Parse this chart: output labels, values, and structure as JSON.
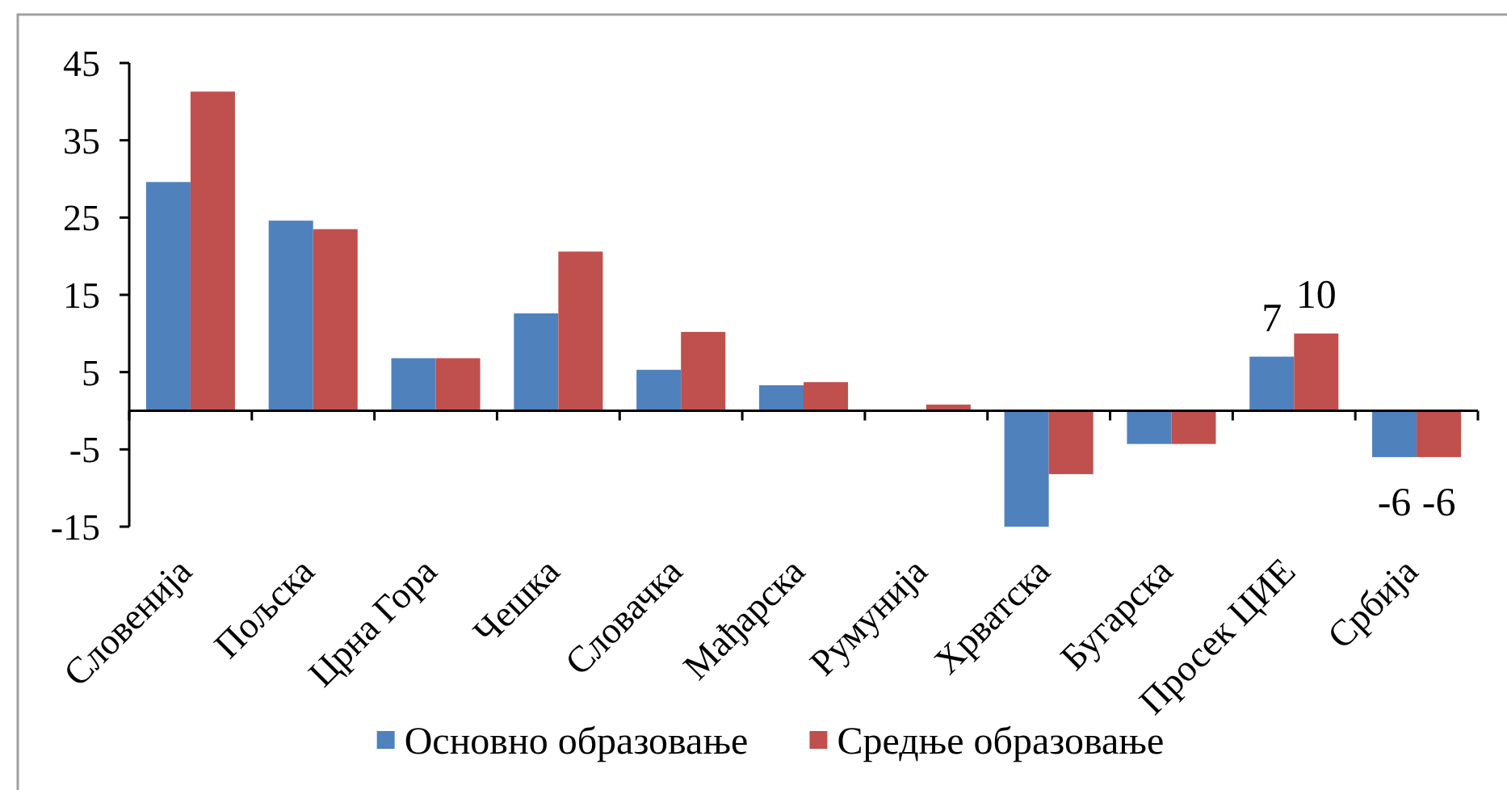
{
  "chart_data": {
    "type": "bar",
    "categories": [
      "Словенија",
      "Пољска",
      "Црна Гора",
      "Чешка",
      "Словачка",
      "Мађарска",
      "Румунија",
      "Хрватска",
      "Бугарска",
      "Просек ЦИЕ",
      "Србија"
    ],
    "series": [
      {
        "name": "Основно образовање",
        "color": "#4f81bd",
        "values": [
          29.6,
          24.6,
          6.8,
          12.6,
          5.3,
          3.3,
          0,
          -15,
          -4.3,
          7,
          -6
        ],
        "value_labels": [
          null,
          null,
          null,
          null,
          null,
          null,
          null,
          null,
          null,
          "7",
          "-6"
        ]
      },
      {
        "name": "Средње образовање",
        "color": "#c0504d",
        "values": [
          41.3,
          23.5,
          6.8,
          20.6,
          10.2,
          3.7,
          0.8,
          -8.2,
          -4.3,
          10,
          -6
        ],
        "value_labels": [
          null,
          null,
          null,
          null,
          null,
          null,
          null,
          null,
          null,
          "10",
          "-6"
        ]
      }
    ],
    "ylim": [
      -15,
      45
    ],
    "yticks": [
      -15,
      -5,
      5,
      15,
      25,
      35,
      45
    ],
    "legend": "bottom"
  }
}
